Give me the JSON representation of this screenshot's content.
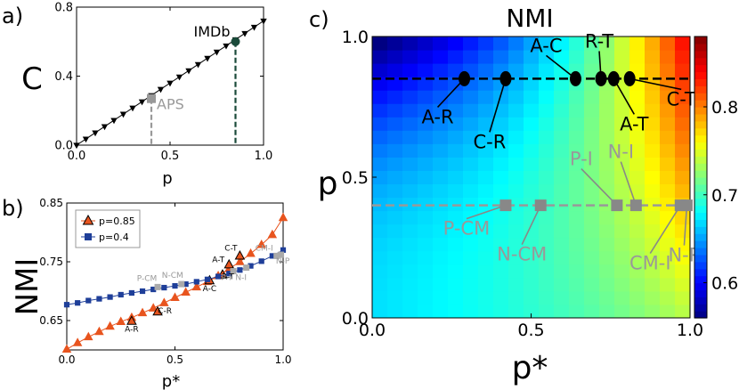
{
  "panels": {
    "a": {
      "letter": "a)"
    },
    "b": {
      "letter": "b)"
    },
    "c": {
      "letter": "c)"
    }
  },
  "chart_data": [
    {
      "id": "a",
      "type": "line",
      "xlabel": "p",
      "ylabel": "C",
      "xlim": [
        0,
        1
      ],
      "ylim": [
        0,
        0.8
      ],
      "xticks": [
        0.0,
        0.5,
        1.0
      ],
      "xtick_labels": [
        "0.0",
        "0.5",
        "1.0"
      ],
      "yticks": [
        0.0,
        0.4,
        0.8
      ],
      "ytick_labels": [
        "0.0",
        "0.4",
        "0.8"
      ],
      "grid": false,
      "series": [
        {
          "marker": "triangle-down",
          "color": "#000000",
          "x": [
            0.0,
            0.05,
            0.1,
            0.15,
            0.2,
            0.25,
            0.3,
            0.35,
            0.4,
            0.45,
            0.5,
            0.55,
            0.6,
            0.65,
            0.7,
            0.75,
            0.8,
            0.85,
            0.9,
            0.95,
            1.0
          ],
          "y": [
            0.0,
            0.036,
            0.072,
            0.108,
            0.144,
            0.18,
            0.216,
            0.252,
            0.288,
            0.324,
            0.36,
            0.396,
            0.432,
            0.468,
            0.504,
            0.54,
            0.576,
            0.612,
            0.648,
            0.684,
            0.72
          ]
        }
      ],
      "highlights": [
        {
          "label": "APS",
          "x": 0.4,
          "y": 0.27,
          "color": "#999999",
          "marker": "square"
        },
        {
          "label": "IMDb",
          "x": 0.85,
          "y": 0.6,
          "color": "#1a4a3a",
          "marker": "circle"
        }
      ]
    },
    {
      "id": "b",
      "type": "line",
      "xlabel": "p*",
      "ylabel": "NMI",
      "xlim": [
        0,
        1
      ],
      "ylim": [
        0.6,
        0.85
      ],
      "xticks": [
        0.0,
        0.5,
        1.0
      ],
      "xtick_labels": [
        "0.0",
        "0.5",
        "1.0"
      ],
      "yticks": [
        0.65,
        0.75,
        0.85
      ],
      "ytick_labels": [
        "0.65",
        "0.75",
        "0.85"
      ],
      "grid": false,
      "legend": "top-left",
      "x": [
        0.0,
        0.05,
        0.1,
        0.15,
        0.2,
        0.25,
        0.3,
        0.35,
        0.4,
        0.45,
        0.5,
        0.55,
        0.6,
        0.65,
        0.7,
        0.75,
        0.8,
        0.85,
        0.9,
        0.95,
        1.0
      ],
      "series": [
        {
          "name": "p=0.85",
          "color": "#e8541e",
          "marker": "triangle-up",
          "values": [
            0.601,
            0.612,
            0.622,
            0.631,
            0.64,
            0.648,
            0.655,
            0.663,
            0.671,
            0.68,
            0.689,
            0.698,
            0.707,
            0.716,
            0.726,
            0.738,
            0.75,
            0.764,
            0.779,
            0.796,
            0.825
          ],
          "labels": [
            {
              "label": "A-R",
              "x": 0.3,
              "y": 0.649
            },
            {
              "label": "C-R",
              "x": 0.42,
              "y": 0.665
            },
            {
              "label": "A-C",
              "x": 0.66,
              "y": 0.718
            },
            {
              "label": "R-T",
              "x": 0.72,
              "y": 0.728
            },
            {
              "label": "A-T",
              "x": 0.75,
              "y": 0.745
            },
            {
              "label": "C-T",
              "x": 0.8,
              "y": 0.76
            }
          ]
        },
        {
          "name": "p=0.4",
          "color": "#1f3f99",
          "marker": "square",
          "values": [
            0.677,
            0.68,
            0.684,
            0.687,
            0.69,
            0.694,
            0.697,
            0.7,
            0.703,
            0.706,
            0.709,
            0.712,
            0.716,
            0.72,
            0.725,
            0.73,
            0.736,
            0.743,
            0.751,
            0.76,
            0.77
          ],
          "labels": [
            {
              "label": "P-CM",
              "x": 0.42,
              "y": 0.707
            },
            {
              "label": "N-CM",
              "x": 0.53,
              "y": 0.712
            },
            {
              "label": "P-I",
              "x": 0.77,
              "y": 0.734
            },
            {
              "label": "N-I",
              "x": 0.83,
              "y": 0.74
            },
            {
              "label": "CM-I",
              "x": 0.97,
              "y": 0.76
            },
            {
              "label": "N-P",
              "x": 0.99,
              "y": 0.762
            }
          ]
        }
      ]
    },
    {
      "id": "c",
      "type": "heatmap",
      "title": "NMI",
      "xlabel": "p*",
      "ylabel": "p",
      "xlim": [
        0,
        1
      ],
      "ylim": [
        0,
        1
      ],
      "xticks": [
        0.0,
        0.5,
        1.0
      ],
      "xtick_labels": [
        "0.0",
        "0.5",
        "1.0"
      ],
      "yticks": [
        0.0,
        0.5,
        1.0
      ],
      "ytick_labels": [
        "0.0",
        "0.5",
        "1.0"
      ],
      "colorbar": {
        "min": 0.56,
        "max": 0.88,
        "ticks": [
          0.6,
          0.7,
          0.8
        ],
        "tick_labels": [
          "0.6",
          "0.7",
          "0.8"
        ],
        "colormap": "jet"
      },
      "grid_size": [
        21,
        21
      ],
      "reference_lines": [
        {
          "y": 0.85,
          "color": "#000000"
        },
        {
          "y": 0.4,
          "color": "#999999"
        }
      ],
      "points": [
        {
          "label": "A-R",
          "x": 0.29,
          "y": 0.85,
          "color": "#000000"
        },
        {
          "label": "C-R",
          "x": 0.42,
          "y": 0.85,
          "color": "#000000"
        },
        {
          "label": "A-C",
          "x": 0.64,
          "y": 0.85,
          "color": "#000000"
        },
        {
          "label": "R-T",
          "x": 0.72,
          "y": 0.85,
          "color": "#000000"
        },
        {
          "label": "A-T",
          "x": 0.76,
          "y": 0.85,
          "color": "#000000"
        },
        {
          "label": "C-T",
          "x": 0.81,
          "y": 0.85,
          "color": "#000000"
        },
        {
          "label": "P-CM",
          "x": 0.42,
          "y": 0.4,
          "color": "#888888"
        },
        {
          "label": "N-CM",
          "x": 0.53,
          "y": 0.4,
          "color": "#888888"
        },
        {
          "label": "P-I",
          "x": 0.77,
          "y": 0.4,
          "color": "#888888"
        },
        {
          "label": "N-I",
          "x": 0.83,
          "y": 0.4,
          "color": "#888888"
        },
        {
          "label": "CM-I",
          "x": 0.97,
          "y": 0.4,
          "color": "#888888"
        },
        {
          "label": "N-P",
          "x": 0.99,
          "y": 0.4,
          "color": "#888888"
        }
      ]
    }
  ]
}
